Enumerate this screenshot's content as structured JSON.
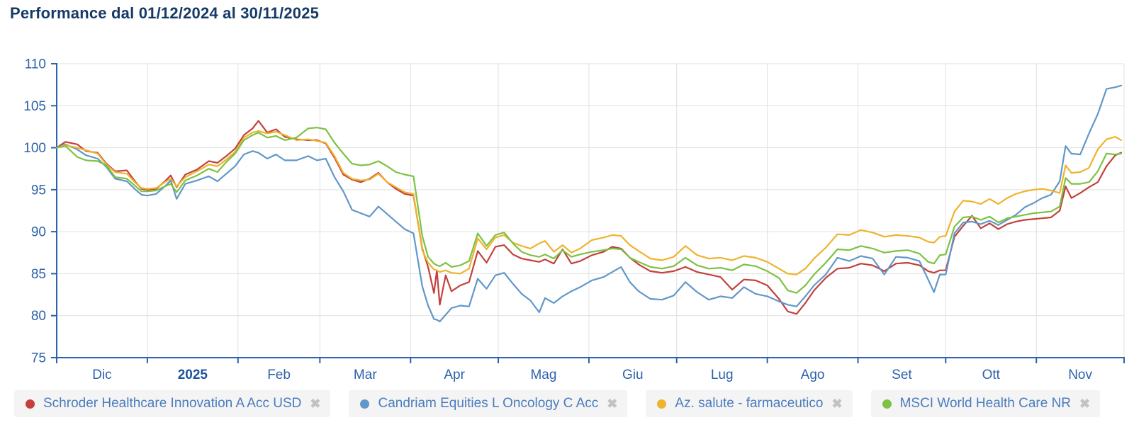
{
  "header": {
    "title": "Performance dal 01/12/2024 al 30/11/2025"
  },
  "colors": {
    "axis": "#2d62ab",
    "grid": "#e0e0e0",
    "title": "#163a66",
    "tick_label": "#2d62ab",
    "year_label": "#1d549f",
    "legend_text": "#4b7cbe",
    "legend_bg": "#f4f4f4",
    "remove_icon": "#c2c2c2"
  },
  "legend": {
    "remove_glyph": "✖"
  },
  "chart_data": {
    "type": "line",
    "title": "Performance dal 01/12/2024 al 30/11/2025",
    "xlabel": "",
    "ylabel": "",
    "ylim": [
      75,
      110
    ],
    "y_ticks": [
      75,
      80,
      85,
      90,
      95,
      100,
      105,
      110
    ],
    "grid": true,
    "legend_position": "bottom",
    "x_month_boundaries_days": [
      0,
      31,
      62,
      90,
      121,
      151,
      182,
      212,
      243,
      274,
      304,
      335,
      365
    ],
    "x_tick_labels": [
      {
        "label": "Dic",
        "bold": false
      },
      {
        "label": "2025",
        "bold": true
      },
      {
        "label": "Feb",
        "bold": false
      },
      {
        "label": "Mar",
        "bold": false
      },
      {
        "label": "Apr",
        "bold": false
      },
      {
        "label": "Mag",
        "bold": false
      },
      {
        "label": "Giu",
        "bold": false
      },
      {
        "label": "Lug",
        "bold": false
      },
      {
        "label": "Ago",
        "bold": false
      },
      {
        "label": "Set",
        "bold": false
      },
      {
        "label": "Ott",
        "bold": false
      },
      {
        "label": "Nov",
        "bold": false
      }
    ],
    "days": [
      0,
      3,
      7,
      10,
      14,
      17,
      20,
      24,
      27,
      29,
      31,
      34,
      37,
      39,
      41,
      44,
      48,
      52,
      55,
      58,
      61,
      64,
      67,
      69,
      72,
      75,
      78,
      82,
      86,
      89,
      92,
      95,
      98,
      101,
      104,
      107,
      110,
      113,
      116,
      119,
      122,
      125,
      127,
      129,
      130,
      131,
      133,
      135,
      138,
      141,
      144,
      147,
      150,
      153,
      156,
      159,
      162,
      165,
      167,
      170,
      173,
      176,
      179,
      183,
      187,
      190,
      193,
      196,
      199,
      203,
      207,
      211,
      215,
      219,
      223,
      227,
      231,
      235,
      239,
      243,
      247,
      250,
      253,
      256,
      259,
      263,
      267,
      271,
      275,
      279,
      283,
      287,
      291,
      295,
      298,
      300,
      302,
      304,
      307,
      310,
      313,
      316,
      319,
      322,
      325,
      328,
      331,
      334,
      337,
      340,
      343,
      345,
      347,
      350,
      353,
      356,
      359,
      362,
      364
    ],
    "series": [
      {
        "name": "Schroder Healthcare Innovation A Acc USD",
        "color": "#c3403c",
        "values": [
          100,
          100.7,
          100.4,
          99.6,
          99.4,
          98.1,
          97.2,
          97.3,
          95.9,
          95.1,
          95,
          95.1,
          96,
          96.7,
          95.3,
          96.8,
          97.4,
          98.4,
          98.2,
          99,
          99.9,
          101.5,
          102.3,
          103.2,
          101.8,
          102.2,
          101.3,
          101,
          100.9,
          100.9,
          100.5,
          98.8,
          96.8,
          96.2,
          95.9,
          96.3,
          97,
          95.9,
          95.1,
          94.5,
          94.3,
          88,
          85.8,
          82.7,
          85.4,
          81.3,
          84.8,
          82.9,
          83.6,
          84,
          87.7,
          86.3,
          88.2,
          88.4,
          87.3,
          86.8,
          86.6,
          86.4,
          86.7,
          86.2,
          87.9,
          86.2,
          86.5,
          87.2,
          87.6,
          88.2,
          88,
          86.9,
          86.1,
          85.3,
          85.1,
          85.3,
          85.8,
          85.2,
          84.9,
          84.6,
          83.1,
          84.3,
          84.2,
          83.6,
          82,
          80.5,
          80.2,
          81.5,
          83,
          84.5,
          85.6,
          85.7,
          86.2,
          86,
          85.3,
          86.2,
          86.3,
          86,
          85.3,
          85.1,
          85.4,
          85.4,
          89.4,
          90.7,
          91.9,
          90.4,
          91,
          90.3,
          90.9,
          91.2,
          91.4,
          91.5,
          91.6,
          91.7,
          92.5,
          95.4,
          94,
          94.6,
          95.3,
          95.9,
          97.8,
          99.1,
          99.4
        ]
      },
      {
        "name": "Candriam Equities L Oncology C Acc",
        "color": "#6197ca",
        "values": [
          100,
          100.4,
          99.8,
          99.1,
          98.7,
          97.7,
          96.3,
          96,
          95,
          94.4,
          94.3,
          94.5,
          95.4,
          96.1,
          93.9,
          95.7,
          96.1,
          96.6,
          96,
          96.9,
          97.8,
          99.2,
          99.6,
          99.4,
          98.7,
          99.2,
          98.5,
          98.5,
          99,
          98.5,
          98.7,
          96.5,
          94.8,
          92.6,
          92.2,
          91.8,
          93,
          92.1,
          91.2,
          90.3,
          89.8,
          83.5,
          81.2,
          79.6,
          79.5,
          79.3,
          80.1,
          80.9,
          81.2,
          81.1,
          84.4,
          83.2,
          84.8,
          85.1,
          83.8,
          82.6,
          81.8,
          80.4,
          82.1,
          81.5,
          82.3,
          82.9,
          83.4,
          84.2,
          84.6,
          85.2,
          85.8,
          84,
          82.9,
          82,
          81.9,
          82.4,
          84,
          82.8,
          81.9,
          82.3,
          82.1,
          83.4,
          82.6,
          82.3,
          81.7,
          81.3,
          81.1,
          82.3,
          83.6,
          84.9,
          86.9,
          86.5,
          87.1,
          86.8,
          84.9,
          87,
          86.9,
          86.5,
          84.3,
          82.8,
          84.9,
          84.9,
          89.8,
          91.1,
          91.2,
          90.9,
          91.3,
          90.8,
          91.4,
          92,
          92.9,
          93.4,
          94,
          94.4,
          96,
          100.2,
          99.3,
          99.2,
          101.7,
          104,
          107,
          107.2,
          107.4
        ]
      },
      {
        "name": "Az. salute - farmaceutico",
        "color": "#efb32d",
        "values": [
          100,
          100.3,
          100,
          99.7,
          99.3,
          98,
          97.1,
          96.9,
          95.8,
          95.2,
          95.1,
          95.2,
          95.9,
          96.3,
          95.4,
          96.5,
          97.2,
          98,
          97.8,
          98.6,
          99.5,
          101.2,
          101.8,
          102,
          101.7,
          101.9,
          101.5,
          100.9,
          101,
          100.8,
          100.6,
          99,
          97,
          96.3,
          96.1,
          96.2,
          96.9,
          95.9,
          95.3,
          94.7,
          94.5,
          87.8,
          86.3,
          85.5,
          85.4,
          85.2,
          85.4,
          85.1,
          85,
          85.6,
          89.2,
          87.9,
          89.3,
          89.6,
          88.7,
          88.3,
          88,
          88.6,
          88.9,
          87.6,
          88.4,
          87.5,
          88,
          89,
          89.3,
          89.6,
          89.5,
          88.4,
          87.7,
          86.8,
          86.6,
          87,
          88.3,
          87.2,
          86.8,
          86.9,
          86.6,
          87.1,
          86.9,
          86.4,
          85.6,
          85,
          84.9,
          85.6,
          86.8,
          88.1,
          89.7,
          89.6,
          90.2,
          89.9,
          89.4,
          89.6,
          89.5,
          89.3,
          88.8,
          88.7,
          89.4,
          89.5,
          92.4,
          93.7,
          93.6,
          93.3,
          93.9,
          93.3,
          94,
          94.5,
          94.8,
          95,
          95.1,
          94.9,
          94.6,
          97.9,
          97,
          97.1,
          97.6,
          99.8,
          101,
          101.3,
          100.9
        ]
      },
      {
        "name": "MSCI World Health Care NR",
        "color": "#7dc242",
        "values": [
          100,
          100.2,
          98.9,
          98.5,
          98.4,
          97.9,
          96.5,
          96.3,
          95.4,
          94.8,
          94.8,
          94.9,
          95.4,
          95.7,
          94.7,
          96.1,
          96.7,
          97.5,
          97.1,
          98.3,
          99.3,
          100.9,
          101.5,
          101.8,
          101.2,
          101.4,
          100.9,
          101.2,
          102.3,
          102.4,
          102.2,
          100.6,
          99.3,
          98.1,
          97.9,
          98,
          98.4,
          97.8,
          97.1,
          96.8,
          96.6,
          89.5,
          87,
          86.2,
          86,
          85.9,
          86.3,
          85.8,
          86,
          86.5,
          89.8,
          88.3,
          89.6,
          89.9,
          88.6,
          87.6,
          87.2,
          87,
          87.3,
          86.8,
          87.8,
          87,
          87.3,
          87.6,
          87.8,
          88,
          87.9,
          86.9,
          86.4,
          85.8,
          85.6,
          85.9,
          86.9,
          86,
          85.6,
          85.7,
          85.4,
          86.1,
          85.9,
          85.3,
          84.5,
          83,
          82.7,
          83.6,
          84.9,
          86.3,
          87.9,
          87.8,
          88.3,
          88,
          87.5,
          87.7,
          87.8,
          87.4,
          86.4,
          86.2,
          87.2,
          87.3,
          90.6,
          91.7,
          91.8,
          91.4,
          91.8,
          91.1,
          91.6,
          91.8,
          92,
          92.2,
          92.3,
          92.4,
          93,
          96.4,
          95.7,
          95.7,
          95.9,
          97.2,
          99.3,
          99.2,
          99.3
        ]
      }
    ]
  }
}
